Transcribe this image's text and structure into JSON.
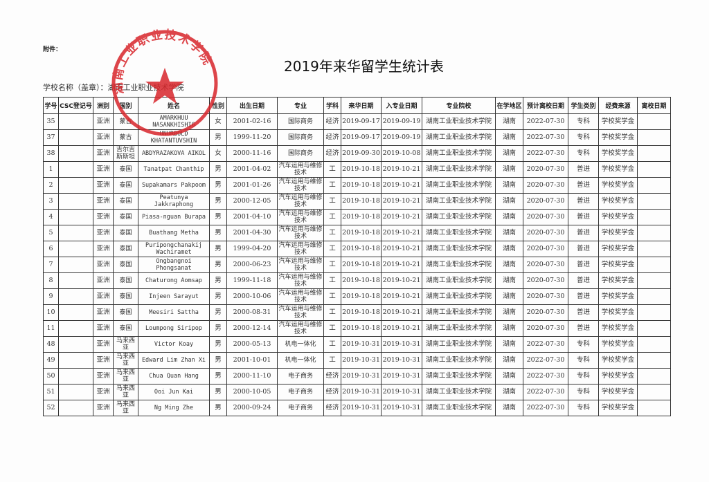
{
  "attachment_label": "附件：",
  "title": "2019年来华留学生统计表",
  "school_label": "学校名称（盖章）：湖南工业职业技术学院",
  "stamp": {
    "text": "湖南工业职业技术学院",
    "color": "#d8262b"
  },
  "table": {
    "headers": [
      "学号",
      "CSC登记号",
      "洲别",
      "国别",
      "姓名",
      "性别",
      "出生日期",
      "专业",
      "学科",
      "来华日期",
      "入专业日期",
      "专业院校",
      "在学地区",
      "预计离校日期",
      "学生类别",
      "经费来源",
      "离校日期"
    ],
    "rows": [
      [
        "35",
        "",
        "亚洲",
        "蒙古",
        "AMARKHUU NASANKHISHIG",
        "女",
        "2001-02-16",
        "国际商务",
        "经济",
        "2019-09-17",
        "2019-09-19",
        "湖南工业职业技术学院",
        "湖南",
        "2022-07-30",
        "专科",
        "学校奖学金",
        ""
      ],
      [
        "37",
        "",
        "亚洲",
        "蒙古",
        "UNURBOLD KHATANTUVSHIN",
        "男",
        "1999-11-20",
        "国际商务",
        "经济",
        "2019-09-17",
        "2019-09-19",
        "湖南工业职业技术学院",
        "湖南",
        "2022-07-30",
        "专科",
        "学校奖学金",
        ""
      ],
      [
        "38",
        "",
        "亚洲",
        "吉尔吉斯斯坦",
        "ABDYRAZAKOVA AIKOL",
        "女",
        "2000-11-16",
        "国际商务",
        "经济",
        "2019-09-30",
        "2019-10-08",
        "湖南工业职业技术学院",
        "湖南",
        "2022-07-30",
        "专科",
        "学校奖学金",
        ""
      ],
      [
        "1",
        "",
        "亚洲",
        "泰国",
        "Tanatpat Chanthip",
        "男",
        "2001-04-02",
        "汽车运用与维修技术",
        "工",
        "2019-10-18",
        "2019-10-21",
        "湖南工业职业技术学院",
        "湖南",
        "2020-07-30",
        "普进",
        "学校奖学金",
        ""
      ],
      [
        "2",
        "",
        "亚洲",
        "泰国",
        "Supakamars Pakpoom",
        "男",
        "2001-01-26",
        "汽车运用与维修技术",
        "工",
        "2019-10-18",
        "2019-10-21",
        "湖南工业职业技术学院",
        "湖南",
        "2020-07-30",
        "普进",
        "学校奖学金",
        ""
      ],
      [
        "3",
        "",
        "亚洲",
        "泰国",
        "Peatunya Jakkraphong",
        "男",
        "2000-12-05",
        "汽车运用与维修技术",
        "工",
        "2019-10-18",
        "2019-10-21",
        "湖南工业职业技术学院",
        "湖南",
        "2020-07-30",
        "普进",
        "学校奖学金",
        ""
      ],
      [
        "4",
        "",
        "亚洲",
        "泰国",
        "Piasa-nguan Burapa",
        "男",
        "2001-04-10",
        "汽车运用与维修技术",
        "工",
        "2019-10-18",
        "2019-10-21",
        "湖南工业职业技术学院",
        "湖南",
        "2020-07-30",
        "普进",
        "学校奖学金",
        ""
      ],
      [
        "5",
        "",
        "亚洲",
        "泰国",
        "Buathang Metha",
        "男",
        "2001-04-30",
        "汽车运用与维修技术",
        "工",
        "2019-10-18",
        "2019-10-21",
        "湖南工业职业技术学院",
        "湖南",
        "2020-07-30",
        "普进",
        "学校奖学金",
        ""
      ],
      [
        "6",
        "",
        "亚洲",
        "泰国",
        "Puripongchanakij Wachiramet",
        "男",
        "1999-04-20",
        "汽车运用与维修技术",
        "工",
        "2019-10-18",
        "2019-10-21",
        "湖南工业职业技术学院",
        "湖南",
        "2020-07-30",
        "普进",
        "学校奖学金",
        ""
      ],
      [
        "7",
        "",
        "亚洲",
        "泰国",
        "Ongbangnoi Phongsanat",
        "男",
        "2000-06-23",
        "汽车运用与维修技术",
        "工",
        "2019-10-18",
        "2019-10-21",
        "湖南工业职业技术学院",
        "湖南",
        "2020-07-30",
        "普进",
        "学校奖学金",
        ""
      ],
      [
        "8",
        "",
        "亚洲",
        "泰国",
        "Chaturong Aomsap",
        "男",
        "1999-11-18",
        "汽车运用与维修技术",
        "工",
        "2019-10-18",
        "2019-10-21",
        "湖南工业职业技术学院",
        "湖南",
        "2020-07-30",
        "普进",
        "学校奖学金",
        ""
      ],
      [
        "9",
        "",
        "亚洲",
        "泰国",
        "Injeen Sarayut",
        "男",
        "2000-10-06",
        "汽车运用与维修技术",
        "工",
        "2019-10-18",
        "2019-10-21",
        "湖南工业职业技术学院",
        "湖南",
        "2020-07-30",
        "普进",
        "学校奖学金",
        ""
      ],
      [
        "10",
        "",
        "亚洲",
        "泰国",
        "Meesiri Sattha",
        "男",
        "2000-08-31",
        "汽车运用与维修技术",
        "工",
        "2019-10-18",
        "2019-10-21",
        "湖南工业职业技术学院",
        "湖南",
        "2020-07-30",
        "普进",
        "学校奖学金",
        ""
      ],
      [
        "11",
        "",
        "亚洲",
        "泰国",
        "Loumpong Siripop",
        "男",
        "2000-12-14",
        "汽车运用与维修技术",
        "工",
        "2019-10-18",
        "2019-10-21",
        "湖南工业职业技术学院",
        "湖南",
        "2020-07-30",
        "普进",
        "学校奖学金",
        ""
      ],
      [
        "48",
        "",
        "亚洲",
        "马来西亚",
        "Victor Koay",
        "男",
        "2000-05-13",
        "机电一体化",
        "工",
        "2019-10-31",
        "2019-10-31",
        "湖南工业职业技术学院",
        "湖南",
        "2022-07-30",
        "专科",
        "学校奖学金",
        ""
      ],
      [
        "49",
        "",
        "亚洲",
        "马来西亚",
        "Edward Lim Zhan Xi",
        "男",
        "2001-10-01",
        "机电一体化",
        "工",
        "2019-10-31",
        "2019-10-31",
        "湖南工业职业技术学院",
        "湖南",
        "2022-07-30",
        "专科",
        "学校奖学金",
        ""
      ],
      [
        "50",
        "",
        "亚洲",
        "马来西亚",
        "Chua Quan Hang",
        "男",
        "2000-11-10",
        "电子商务",
        "经济",
        "2019-10-31",
        "2019-10-31",
        "湖南工业职业技术学院",
        "湖南",
        "2022-07-30",
        "专科",
        "学校奖学金",
        ""
      ],
      [
        "51",
        "",
        "亚洲",
        "马来西亚",
        "Ooi Jun Kai",
        "男",
        "2000-10-05",
        "电子商务",
        "经济",
        "2019-10-31",
        "2019-10-31",
        "湖南工业职业技术学院",
        "湖南",
        "2022-07-30",
        "专科",
        "学校奖学金",
        ""
      ],
      [
        "52",
        "",
        "亚洲",
        "马来西亚",
        "Ng Ming Zhe",
        "男",
        "2000-09-24",
        "电子商务",
        "经济",
        "2019-10-31",
        "2019-10-31",
        "湖南工业职业技术学院",
        "湖南",
        "2022-07-30",
        "专科",
        "学校奖学金",
        ""
      ]
    ]
  }
}
